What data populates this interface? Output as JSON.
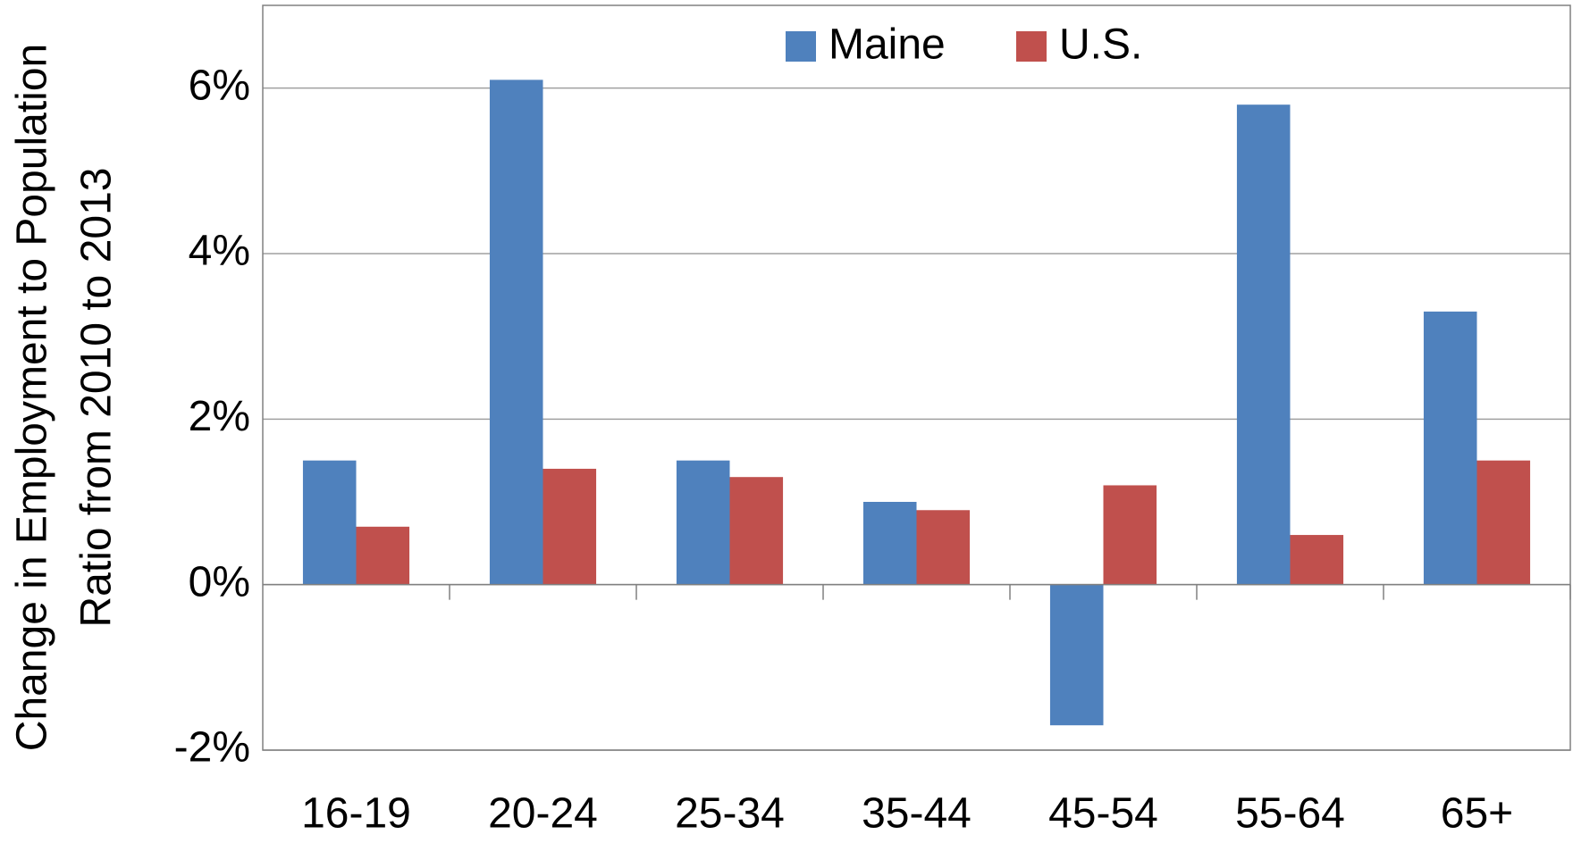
{
  "chart_data": {
    "type": "bar",
    "ylabel": [
      "Change in Employment to Population",
      "Ratio from 2010 to 2013"
    ],
    "categories": [
      "16-19",
      "20-24",
      "25-34",
      "35-44",
      "45-54",
      "55-64",
      "65+"
    ],
    "series": [
      {
        "name": "Maine",
        "color": "#4f81bd",
        "values": [
          1.5,
          6.1,
          1.5,
          1.0,
          -1.7,
          5.8,
          3.3
        ]
      },
      {
        "name": "U.S.",
        "color": "#c0504d",
        "values": [
          0.7,
          1.4,
          1.3,
          0.9,
          1.2,
          0.6,
          1.5
        ]
      }
    ],
    "ylim": [
      -2,
      7
    ],
    "yticks": [
      {
        "value": -2,
        "label": "-2%"
      },
      {
        "value": 0,
        "label": "0%"
      },
      {
        "value": 2,
        "label": "2%"
      },
      {
        "value": 4,
        "label": "4%"
      },
      {
        "value": 6,
        "label": "6%"
      }
    ],
    "grid": true,
    "legend": "top"
  }
}
